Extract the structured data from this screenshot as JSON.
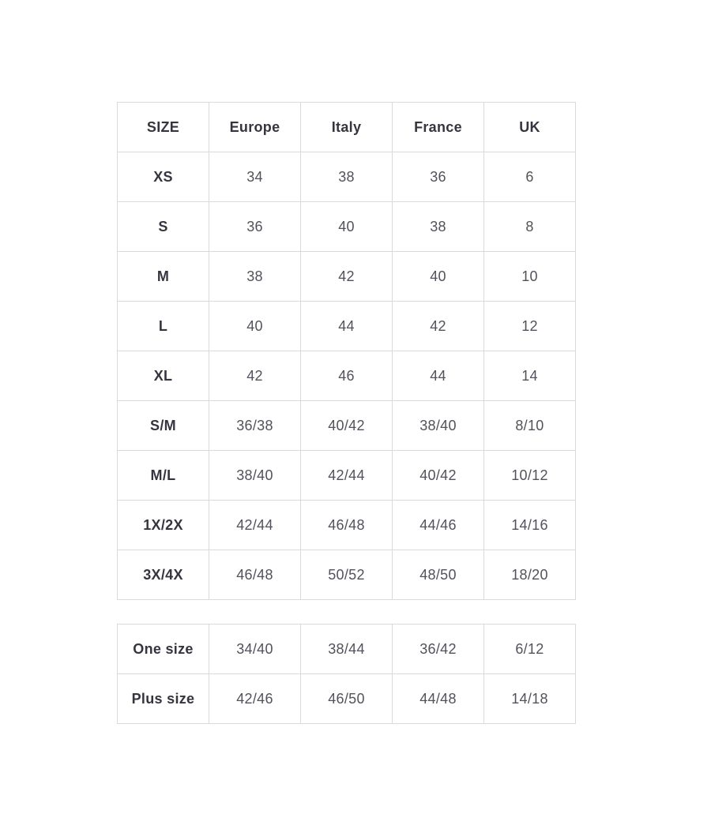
{
  "colors": {
    "background": "#ffffff",
    "border": "#d9dadb",
    "header_text": "#37343f",
    "value_text": "#52525c"
  },
  "chart_data": [
    {
      "type": "table",
      "name": "size-conversion-chart",
      "columns": [
        "SIZE",
        "Europe",
        "Italy",
        "France",
        "UK"
      ],
      "rows": [
        [
          "XS",
          "34",
          "38",
          "36",
          "6"
        ],
        [
          "S",
          "36",
          "40",
          "38",
          "8"
        ],
        [
          "M",
          "38",
          "42",
          "40",
          "10"
        ],
        [
          "L",
          "40",
          "44",
          "42",
          "12"
        ],
        [
          "XL",
          "42",
          "46",
          "44",
          "14"
        ],
        [
          "S/M",
          "36/38",
          "40/42",
          "38/40",
          "8/10"
        ],
        [
          "M/L",
          "38/40",
          "42/44",
          "40/42",
          "10/12"
        ],
        [
          "1X/2X",
          "42/44",
          "46/48",
          "44/46",
          "14/16"
        ],
        [
          "3X/4X",
          "46/48",
          "50/52",
          "48/50",
          "18/20"
        ]
      ],
      "layout": {
        "grid": true,
        "header_row": true,
        "bold_first_column": true
      }
    },
    {
      "type": "table",
      "name": "special-size-conversion-chart",
      "columns": [],
      "rows": [
        [
          "One size",
          "34/40",
          "38/44",
          "36/42",
          "6/12"
        ],
        [
          "Plus size",
          "42/46",
          "46/50",
          "44/48",
          "14/18"
        ]
      ],
      "layout": {
        "grid": true,
        "header_row": false,
        "bold_first_column": true
      }
    }
  ]
}
